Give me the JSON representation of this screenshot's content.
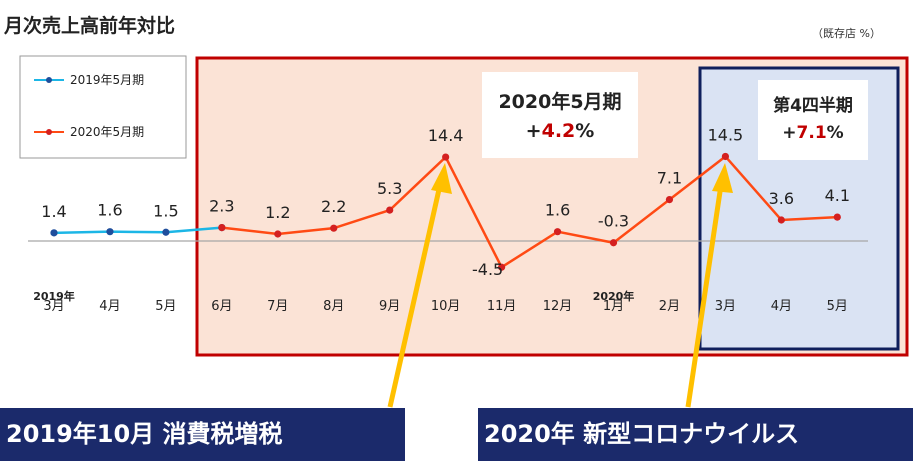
{
  "title": "月次売上高前年対比",
  "unit_note": "（既存店 %）",
  "legend": [
    "2019年5月期",
    "2020年5月期"
  ],
  "annotations": {
    "fy_title": "2020年5月期",
    "fy_value_prefix": "+",
    "fy_value": "4.2",
    "fy_value_suffix": "%",
    "q4_title": "第4四半期",
    "q4_value_prefix": "+",
    "q4_value": "7.1",
    "q4_value_suffix": "%",
    "banner_left": "2019年10月 消費税増税",
    "banner_right": "2020年 新型コロナウイルス"
  },
  "year_labels": [
    {
      "category": "3月",
      "text": "2019年"
    },
    {
      "category": "1月",
      "text": "2020年"
    }
  ],
  "colors": {
    "series_2019": "#1cb6e6",
    "series_2020": "#ff4a14",
    "marker_2019": "#1f4e9c",
    "marker_2020": "#d42020",
    "fy_box_border": "#c00000",
    "fy_box_fill": "#fbe3d6",
    "q4_box_border": "#0f1f5c",
    "q4_box_fill": "#dae3f3",
    "highlight_red": "#c00000",
    "arrow": "#ffc000",
    "banner": "#1b2a6b",
    "banner_text": "#ffffff"
  },
  "chart_data": {
    "type": "line",
    "categories": [
      "3月",
      "4月",
      "5月",
      "6月",
      "7月",
      "8月",
      "9月",
      "10月",
      "11月",
      "12月",
      "1月",
      "2月",
      "3月",
      "4月",
      "5月"
    ],
    "series": [
      {
        "name": "2019年5月期",
        "values": [
          1.4,
          1.6,
          1.5,
          2.3,
          null,
          null,
          null,
          null,
          null,
          null,
          null,
          null,
          null,
          null,
          null
        ],
        "labels": [
          "1.4",
          "1.6",
          "1.5",
          null,
          null,
          null,
          null,
          null,
          null,
          null,
          null,
          null,
          null,
          null,
          null
        ]
      },
      {
        "name": "2020年5月期",
        "values": [
          null,
          null,
          null,
          2.3,
          1.2,
          2.2,
          5.3,
          14.4,
          -4.5,
          1.6,
          -0.3,
          7.1,
          14.5,
          3.6,
          4.1
        ],
        "labels": [
          null,
          null,
          null,
          "2.3",
          "1.2",
          "2.2",
          "5.3",
          "14.4",
          "-4.5",
          "1.6",
          "-0.3",
          "7.1",
          "14.5",
          "3.6",
          "4.1"
        ]
      }
    ],
    "title": "月次売上高前年対比",
    "xlabel": "",
    "ylabel": "",
    "grid": false,
    "legend_position": "top-left"
  }
}
